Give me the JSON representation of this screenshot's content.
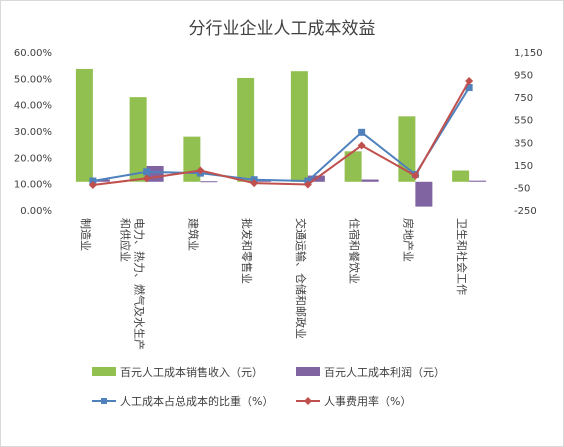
{
  "chart_data": {
    "type": "bar",
    "title": "分行业企业人工成本效益",
    "categories": [
      "制造业",
      "电力、热力、燃气及水生产和供应业",
      "建筑业",
      "批发和零售业",
      "交通运输、仓储和邮政业",
      "住宿和餐饮业",
      "房地产业",
      "卫生和社会工作"
    ],
    "category_lines": [
      [
        "制造业"
      ],
      [
        "电力、热力、燃气及水生产",
        "和供应业"
      ],
      [
        "建筑业"
      ],
      [
        "批发和零售业"
      ],
      [
        "交通运输、仓储和邮政业"
      ],
      [
        "住宿和餐饮业"
      ],
      [
        "房地产业"
      ],
      [
        "卫生和社会工作"
      ]
    ],
    "left_axis": {
      "min": 0,
      "max": 0.6,
      "ticks": [
        "0.00%",
        "10.00%",
        "20.00%",
        "30.00%",
        "40.00%",
        "50.00%",
        "60.00%"
      ]
    },
    "right_axis": {
      "min": -250,
      "max": 1150,
      "ticks": [
        "-250",
        "-50",
        "150",
        "350",
        "550",
        "750",
        "950",
        "1,150"
      ]
    },
    "series": [
      {
        "name": "百元人工成本销售收入（元）",
        "type": "bar",
        "axis": "right",
        "color": "#92c050",
        "values": [
          1000,
          750,
          400,
          920,
          980,
          270,
          580,
          100
        ]
      },
      {
        "name": "百元人工成本利润（元）",
        "type": "bar",
        "axis": "right",
        "color": "#8064a2",
        "values": [
          20,
          140,
          5,
          20,
          55,
          20,
          -220,
          10
        ]
      },
      {
        "name": "人工成本占总成本的比重（%）",
        "type": "line",
        "axis": "left",
        "color": "#4f81bd",
        "marker": "square",
        "values": [
          0.11,
          0.145,
          0.14,
          0.115,
          0.11,
          0.295,
          0.135,
          0.465
        ]
      },
      {
        "name": "人事费用率（%）",
        "type": "line",
        "axis": "left",
        "color": "#c0504d",
        "marker": "diamond",
        "values": [
          0.095,
          0.12,
          0.15,
          0.102,
          0.097,
          0.245,
          0.13,
          0.49
        ]
      }
    ],
    "legend_position": "bottom",
    "grid": false
  }
}
